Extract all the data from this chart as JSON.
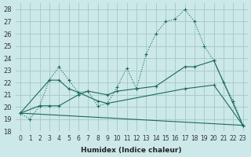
{
  "xlabel": "Humidex (Indice chaleur)",
  "xlim": [
    -0.5,
    23.5
  ],
  "ylim": [
    18,
    28.5
  ],
  "yticks": [
    18,
    19,
    20,
    21,
    22,
    23,
    24,
    25,
    26,
    27,
    28
  ],
  "xticks": [
    0,
    1,
    2,
    3,
    4,
    5,
    6,
    7,
    8,
    9,
    10,
    11,
    12,
    13,
    14,
    15,
    16,
    17,
    18,
    19,
    20,
    21,
    22,
    23
  ],
  "bg_color": "#cce8e8",
  "grid_color": "#aacccc",
  "line_color": "#1a6b5a",
  "lines": [
    {
      "x": [
        0,
        1,
        2,
        3,
        4,
        5,
        6,
        7,
        8,
        9,
        10,
        11,
        12,
        13,
        14,
        15,
        16,
        17,
        18,
        19,
        20,
        21,
        22,
        23
      ],
      "y": [
        19.5,
        19.0,
        20.1,
        22.2,
        23.3,
        22.2,
        21.2,
        21.3,
        20.1,
        20.3,
        21.6,
        23.2,
        21.5,
        24.3,
        26.0,
        27.0,
        27.2,
        28.0,
        27.0,
        25.0,
        23.8,
        22.0,
        20.5,
        18.5
      ]
    },
    {
      "x": [
        0,
        2,
        3,
        4,
        6,
        7,
        9,
        10,
        12,
        14,
        17,
        18,
        20,
        23
      ],
      "y": [
        19.5,
        20.1,
        20.1,
        20.1,
        21.0,
        21.3,
        21.0,
        21.3,
        21.5,
        21.7,
        23.3,
        23.3,
        23.8,
        18.5
      ]
    },
    {
      "x": [
        0,
        3,
        4,
        5,
        6,
        8,
        9,
        17,
        20,
        23
      ],
      "y": [
        19.5,
        22.2,
        22.2,
        21.5,
        21.2,
        20.5,
        20.3,
        21.5,
        21.8,
        18.5
      ]
    },
    {
      "x": [
        0,
        23
      ],
      "y": [
        19.5,
        18.5
      ]
    }
  ]
}
